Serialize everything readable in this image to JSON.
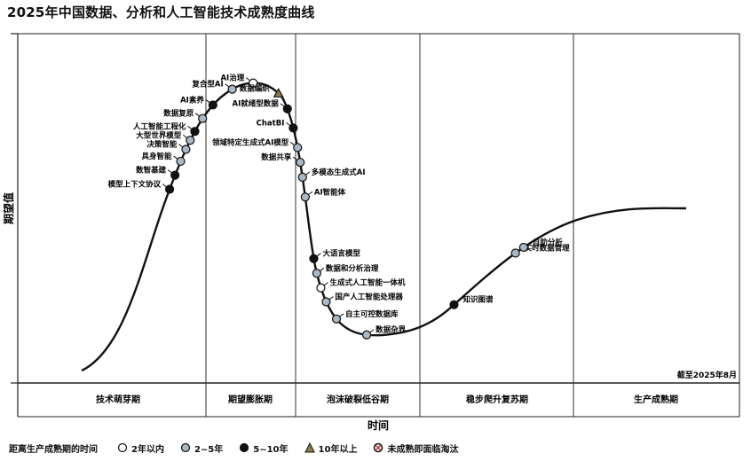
{
  "chart_data": {
    "type": "scatter",
    "title": "2025年中国数据、分析和人工智能技术成熟度曲线",
    "xlabel": "时间",
    "ylabel": "期望值",
    "note": "截至2025年8月",
    "phases": [
      "技术萌芽期",
      "期望膨胀期",
      "泡沫破裂低谷期",
      "稳步爬升复苏期",
      "生产成熟期"
    ],
    "legend": {
      "title": "距离生产成熟期的时间",
      "items": [
        {
          "key": "lt2",
          "label": "2年以内",
          "fill": "#ffffff"
        },
        {
          "key": "2to5",
          "label": "2~5年",
          "fill": "#a9b8c6"
        },
        {
          "key": "5to10",
          "label": "5~10年",
          "fill": "#111111"
        },
        {
          "key": "gt10",
          "label": "10年以上",
          "fill": "#8a7d4a"
        },
        {
          "key": "obsolete",
          "label": "未成熟即面临淘汰",
          "fill": "#ffffff"
        }
      ]
    },
    "technologies": [
      {
        "name": "模型上下文协议",
        "category": "5to10",
        "t": 0.205,
        "side": "left"
      },
      {
        "name": "数智基建",
        "category": "5to10",
        "t": 0.22,
        "side": "left"
      },
      {
        "name": "具身智能",
        "category": "2to5",
        "t": 0.235,
        "side": "left"
      },
      {
        "name": "决策智能",
        "category": "2to5",
        "t": 0.248,
        "side": "left"
      },
      {
        "name": "大型世界模型",
        "category": "2to5",
        "t": 0.258,
        "side": "left"
      },
      {
        "name": "人工智能工程化",
        "category": "5to10",
        "t": 0.268,
        "side": "left"
      },
      {
        "name": "数据复原",
        "category": "2to5",
        "t": 0.283,
        "side": "left"
      },
      {
        "name": "AI素养",
        "category": "5to10",
        "t": 0.3,
        "side": "left"
      },
      {
        "name": "复合型AI",
        "category": "2to5",
        "t": 0.325,
        "side": "left"
      },
      {
        "name": "AI治理",
        "category": "lt2",
        "t": 0.347,
        "side": "left"
      },
      {
        "name": "数据编织",
        "category": "gt10",
        "t": 0.375,
        "side": "left"
      },
      {
        "name": "AI就绪型数据",
        "category": "5to10",
        "t": 0.393,
        "side": "left"
      },
      {
        "name": "ChatBI",
        "category": "5to10",
        "t": 0.413,
        "side": "left"
      },
      {
        "name": "领域特定生成式AI模型",
        "category": "2to5",
        "t": 0.433,
        "side": "left"
      },
      {
        "name": "数据共享",
        "category": "2to5",
        "t": 0.448,
        "side": "left"
      },
      {
        "name": "多模态生成式AI",
        "category": "2to5",
        "t": 0.463,
        "side": "right"
      },
      {
        "name": "AI智能体",
        "category": "2to5",
        "t": 0.483,
        "side": "right"
      },
      {
        "name": "大语言模型",
        "category": "5to10",
        "t": 0.545,
        "side": "right"
      },
      {
        "name": "数据和分析治理",
        "category": "2to5",
        "t": 0.56,
        "side": "right"
      },
      {
        "name": "生成式人工智能一体机",
        "category": "lt2",
        "t": 0.575,
        "side": "right"
      },
      {
        "name": "国产人工智能处理器",
        "category": "2to5",
        "t": 0.59,
        "side": "right"
      },
      {
        "name": "自主可控数据库",
        "category": "2to5",
        "t": 0.61,
        "side": "right"
      },
      {
        "name": "数据杂界",
        "category": "2to5",
        "t": 0.645,
        "side": "right"
      },
      {
        "name": "知识图谱",
        "category": "5to10",
        "t": 0.74,
        "side": "right"
      },
      {
        "name": "实时数据管理",
        "category": "2to5",
        "t": 0.82,
        "side": "right"
      },
      {
        "name": "自助分析",
        "category": "2to5",
        "t": 0.83,
        "side": "right"
      }
    ]
  }
}
